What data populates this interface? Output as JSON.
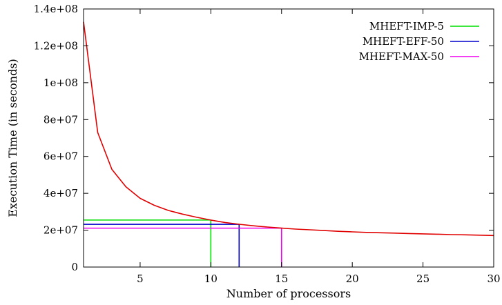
{
  "chart_data": {
    "type": "line",
    "xlabel": "Number of processors",
    "ylabel": "Execution Time (in seconds)",
    "xlim": [
      1,
      30
    ],
    "ylim": [
      0,
      140000000
    ],
    "x_ticks": [
      5,
      10,
      15,
      20,
      25,
      30
    ],
    "x_tick_labels": [
      "5",
      "10",
      "15",
      "20",
      "25",
      "30"
    ],
    "y_ticks": [
      0,
      20000000,
      40000000,
      60000000,
      80000000,
      100000000,
      120000000,
      140000000
    ],
    "y_tick_labels": [
      "0",
      "2e+07",
      "4e+07",
      "6e+07",
      "8e+07",
      "1e+08",
      "1.2e+08",
      "1.4e+08"
    ],
    "grid": false,
    "legend_position": "top-right",
    "curve": {
      "color": "#e00000",
      "x": [
        1,
        2,
        3,
        4,
        5,
        6,
        7,
        8,
        9,
        10,
        11,
        12,
        13,
        14,
        15,
        16,
        17,
        18,
        19,
        20,
        21,
        22,
        23,
        24,
        25,
        26,
        27,
        28,
        29,
        30
      ],
      "y": [
        133000000,
        73000000,
        53000000,
        43500000,
        37300000,
        33500000,
        30700000,
        28700000,
        27000000,
        25500000,
        24200000,
        23200000,
        22400000,
        21700000,
        21100000,
        20600000,
        20200000,
        19800000,
        19400000,
        19100000,
        18800000,
        18600000,
        18400000,
        18200000,
        18000000,
        17800000,
        17600000,
        17500000,
        17300000,
        17100000
      ]
    },
    "series": [
      {
        "name": "MHEFT-IMP-5",
        "color": "#00dd00",
        "processors": 10,
        "time": 25500000
      },
      {
        "name": "MHEFT-EFF-50",
        "color": "#0000cc",
        "processors": 12,
        "time": 23200000
      },
      {
        "name": "MHEFT-MAX-50",
        "color": "#ee00ee",
        "processors": 15,
        "time": 21100000
      }
    ]
  }
}
